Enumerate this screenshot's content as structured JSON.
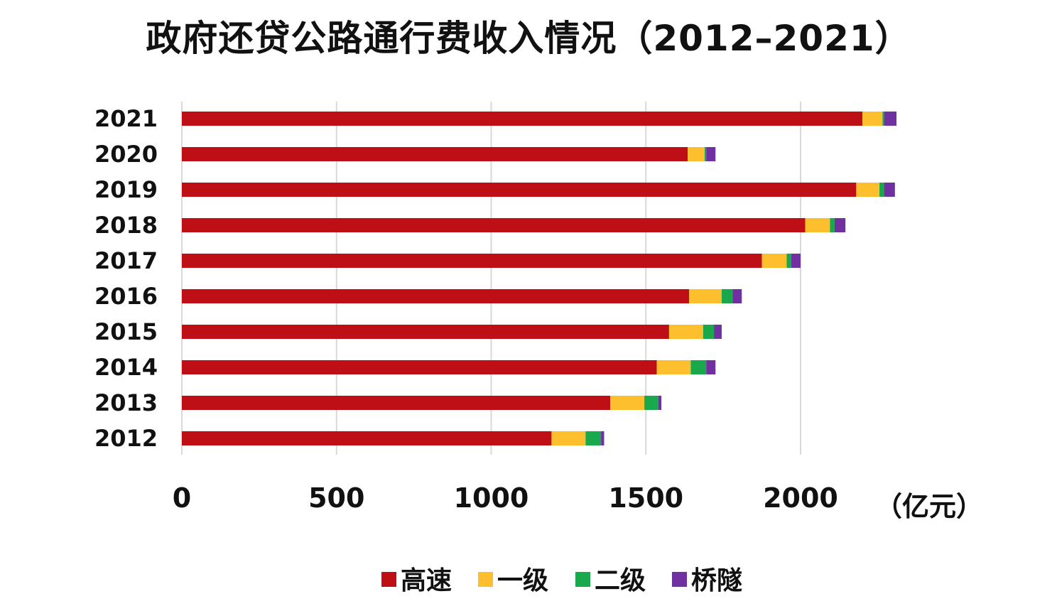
{
  "chart_data": {
    "type": "bar",
    "orientation": "horizontal",
    "stacked": true,
    "title": "政府还贷公路通行费收入情况（2012–2021）",
    "unit_label": "（亿元）",
    "categories": [
      "2021",
      "2020",
      "2019",
      "2018",
      "2017",
      "2016",
      "2015",
      "2014",
      "2013",
      "2012"
    ],
    "series": [
      {
        "name": "高速",
        "color": "#be0f17",
        "values": [
          2200,
          1635,
          2180,
          2015,
          1875,
          1640,
          1575,
          1535,
          1385,
          1195
        ]
      },
      {
        "name": "一级",
        "color": "#fdbf2d",
        "values": [
          65,
          55,
          75,
          80,
          80,
          105,
          110,
          110,
          110,
          110
        ]
      },
      {
        "name": "二级",
        "color": "#1aa84c",
        "values": [
          5,
          5,
          15,
          15,
          15,
          35,
          35,
          50,
          45,
          50
        ]
      },
      {
        "name": "桥隧",
        "color": "#7030a0",
        "values": [
          40,
          30,
          35,
          35,
          30,
          30,
          25,
          30,
          10,
          10
        ]
      }
    ],
    "xlim": [
      0,
      2300
    ],
    "xticks": [
      "0",
      "500",
      "1000",
      "1500",
      "2000"
    ],
    "grid": "vertical",
    "legend_position": "bottom"
  }
}
